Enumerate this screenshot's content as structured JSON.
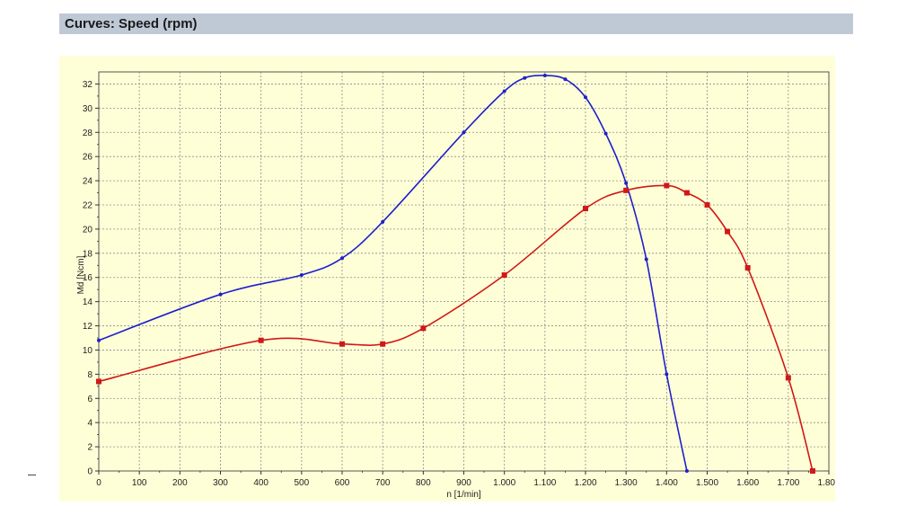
{
  "header": {
    "title": "Curves: Speed (rpm)"
  },
  "chart_data": {
    "type": "line",
    "title": "",
    "xlabel": "n [1/min]",
    "ylabel": "Md [Ncm]",
    "xlim": [
      0,
      1800
    ],
    "ylim": [
      0,
      33
    ],
    "grid": true,
    "x_ticks": [
      0,
      100,
      200,
      300,
      400,
      500,
      600,
      700,
      800,
      900,
      1000,
      1100,
      1200,
      1300,
      1400,
      1500,
      1600,
      1700,
      1800
    ],
    "x_tick_labels": [
      "0",
      "100",
      "200",
      "300",
      "400",
      "500",
      "600",
      "700",
      "800",
      "900",
      "1.000",
      "1.100",
      "1.200",
      "1.300",
      "1.400",
      "1.500",
      "1.600",
      "1.700",
      "1.800"
    ],
    "y_ticks": [
      0,
      2,
      4,
      6,
      8,
      10,
      12,
      14,
      16,
      18,
      20,
      22,
      24,
      26,
      28,
      30,
      32
    ],
    "y_tick_labels": [
      "0",
      "2",
      "4",
      "6",
      "8",
      "10",
      "12",
      "14",
      "16",
      "18",
      "20",
      "22",
      "24",
      "26",
      "28",
      "30",
      "32"
    ],
    "series": [
      {
        "color": "#1f1fcc",
        "marker": "dot",
        "x": [
          0,
          300,
          500,
          600,
          700,
          900,
          1000,
          1050,
          1100,
          1150,
          1200,
          1250,
          1300,
          1350,
          1400,
          1450
        ],
        "y": [
          10.8,
          14.6,
          16.2,
          17.6,
          20.6,
          28.0,
          31.4,
          32.5,
          32.7,
          32.4,
          30.9,
          27.9,
          23.8,
          17.5,
          8.0,
          0.0
        ]
      },
      {
        "color": "#d01818",
        "marker": "square",
        "x": [
          0,
          400,
          600,
          700,
          800,
          1000,
          1200,
          1300,
          1400,
          1450,
          1500,
          1550,
          1600,
          1700,
          1760
        ],
        "y": [
          7.4,
          10.8,
          10.5,
          10.5,
          11.8,
          16.2,
          21.7,
          23.2,
          23.6,
          23.0,
          22.0,
          19.8,
          16.8,
          7.7,
          0.0
        ]
      }
    ]
  }
}
